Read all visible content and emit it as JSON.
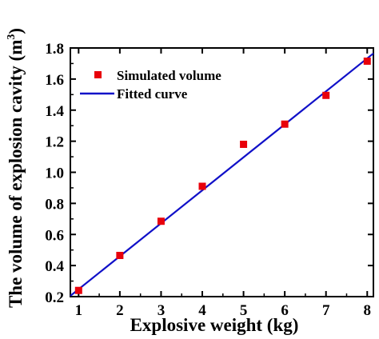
{
  "chart_data": {
    "type": "scatter",
    "title": "",
    "xlabel": "Explosive weight (kg)",
    "ylabel": "The volume of explosion cavity (m",
    "ylabel_superscript": "3",
    "ylabel_close": ")",
    "xlim": [
      0.8,
      8.15
    ],
    "ylim": [
      0.2,
      1.8
    ],
    "x_ticks": [
      "1",
      "2",
      "3",
      "4",
      "5",
      "6",
      "7",
      "8"
    ],
    "y_ticks": [
      "0.2",
      "0.4",
      "0.6",
      "0.8",
      "1.0",
      "1.2",
      "1.4",
      "1.6",
      "1.8"
    ],
    "grid": false,
    "legend_position": "top-left",
    "series": [
      {
        "name": "Simulated volume",
        "kind": "scatter",
        "marker": "square",
        "color": "#e8000b",
        "x": [
          1,
          2,
          3,
          4,
          5,
          6,
          7,
          8
        ],
        "y": [
          0.24,
          0.465,
          0.685,
          0.91,
          1.18,
          1.31,
          1.495,
          1.715
        ]
      },
      {
        "name": "Fitted curve",
        "kind": "line",
        "color": "#1010c8",
        "x": [
          0.8,
          8.15
        ],
        "y": [
          0.205,
          1.765
        ]
      }
    ]
  }
}
